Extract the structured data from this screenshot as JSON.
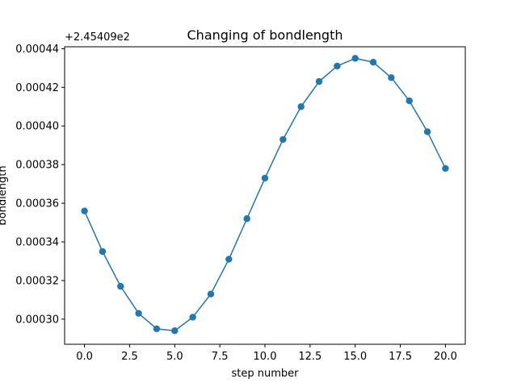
{
  "chart_data": {
    "type": "line",
    "title": "Changing of bondlength",
    "xlabel": "step number",
    "ylabel": "bondlength",
    "offset_text": "+2.45409e2",
    "x": [
      0,
      1,
      2,
      3,
      4,
      5,
      6,
      7,
      8,
      9,
      10,
      11,
      12,
      13,
      14,
      15,
      16,
      17,
      18,
      19,
      20
    ],
    "series": [
      {
        "values": [
          0.000356,
          0.000335,
          0.000317,
          0.000303,
          0.000295,
          0.000294,
          0.000301,
          0.000313,
          0.000331,
          0.000352,
          0.000373,
          0.000393,
          0.00041,
          0.000423,
          0.000431,
          0.000435,
          0.000433,
          0.000425,
          0.000413,
          0.000397,
          0.000378
        ],
        "color": "#1f77b4",
        "marker": "circle"
      }
    ],
    "xlim": [
      -1.1,
      21.1
    ],
    "ylim": [
      0.000287,
      0.000441
    ],
    "x_ticks": [
      0,
      2.5,
      5,
      7.5,
      10,
      12.5,
      15,
      17.5,
      20
    ],
    "x_tick_labels": [
      "0.0",
      "2.5",
      "5.0",
      "7.5",
      "10.0",
      "12.5",
      "15.0",
      "17.5",
      "20.0"
    ],
    "y_ticks": [
      0.0003,
      0.00032,
      0.00034,
      0.00036,
      0.00038,
      0.0004,
      0.00042,
      0.00044
    ],
    "y_tick_labels": [
      "0.00030",
      "0.00032",
      "0.00034",
      "0.00036",
      "0.00038",
      "0.00040",
      "0.00042",
      "0.00044"
    ],
    "grid": false
  }
}
